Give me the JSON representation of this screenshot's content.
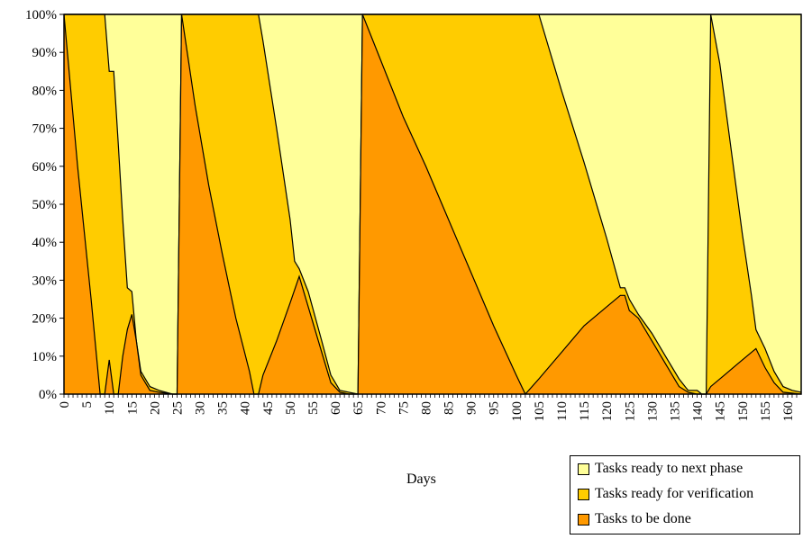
{
  "chart_data": {
    "type": "area",
    "stacked": "percent",
    "xlabel": "Days",
    "ylabel": "",
    "title": "",
    "xlim": [
      0,
      163
    ],
    "ylim": [
      0,
      100
    ],
    "y_ticks": [
      "0%",
      "10%",
      "20%",
      "30%",
      "40%",
      "50%",
      "60%",
      "70%",
      "80%",
      "90%",
      "100%"
    ],
    "x_ticks": [
      0,
      5,
      10,
      15,
      20,
      25,
      30,
      35,
      40,
      45,
      50,
      55,
      60,
      65,
      70,
      75,
      80,
      85,
      90,
      95,
      100,
      105,
      110,
      115,
      120,
      125,
      130,
      135,
      140,
      145,
      150,
      155,
      160
    ],
    "x_ticks_extra": [
      1,
      2,
      3,
      4,
      6,
      7,
      8,
      9,
      11,
      12,
      13,
      14,
      16,
      17,
      18,
      19,
      21,
      22,
      23,
      24,
      26,
      27,
      28,
      29,
      31,
      32,
      33,
      34,
      36,
      37,
      38,
      39,
      41,
      42,
      43,
      44,
      46,
      47,
      48,
      49,
      51,
      52,
      53,
      54,
      56,
      57,
      58,
      59,
      61,
      62,
      63,
      64,
      66,
      67,
      68,
      69,
      71,
      72,
      73,
      74,
      76,
      77,
      78,
      79,
      81,
      82,
      83,
      84,
      86,
      87,
      88,
      89,
      91,
      92,
      93,
      94,
      96,
      97,
      98,
      99,
      101,
      102,
      103,
      104,
      106,
      107,
      108,
      109,
      111,
      112,
      113,
      114,
      116,
      117,
      118,
      119,
      121,
      122,
      123,
      124,
      126,
      127,
      128,
      129,
      131,
      132,
      133,
      134,
      136,
      137,
      138,
      139,
      141,
      142,
      143,
      144,
      146,
      147,
      148,
      149,
      151,
      152,
      153,
      154,
      156,
      157,
      158,
      159,
      161,
      162
    ],
    "grid": false,
    "legend_position": "bottom-right",
    "series": [
      {
        "name": "Tasks to be done",
        "color": "#ff9900",
        "points": [
          [
            0,
            100
          ],
          [
            3,
            60
          ],
          [
            6,
            25
          ],
          [
            8,
            0
          ],
          [
            9,
            0
          ],
          [
            10,
            9
          ],
          [
            11,
            0
          ],
          [
            12,
            0
          ],
          [
            13,
            10
          ],
          [
            14,
            17
          ],
          [
            15,
            21
          ],
          [
            16,
            14
          ],
          [
            17,
            5
          ],
          [
            19,
            1
          ],
          [
            21,
            0.5
          ],
          [
            24,
            0
          ],
          [
            25,
            0
          ],
          [
            26,
            100
          ],
          [
            29,
            76
          ],
          [
            32,
            55
          ],
          [
            35,
            37
          ],
          [
            38,
            20
          ],
          [
            41,
            6
          ],
          [
            42,
            0
          ],
          [
            43,
            0
          ],
          [
            44,
            5
          ],
          [
            47,
            14
          ],
          [
            50,
            24
          ],
          [
            52,
            31
          ],
          [
            54,
            23
          ],
          [
            57,
            11
          ],
          [
            59,
            3
          ],
          [
            61,
            0.5
          ],
          [
            63,
            0
          ],
          [
            65,
            0
          ],
          [
            66,
            100
          ],
          [
            70,
            88
          ],
          [
            75,
            73
          ],
          [
            80,
            60
          ],
          [
            85,
            46
          ],
          [
            90,
            32
          ],
          [
            95,
            18
          ],
          [
            100,
            5
          ],
          [
            102,
            0
          ],
          [
            105,
            4
          ],
          [
            110,
            11
          ],
          [
            115,
            18
          ],
          [
            120,
            23
          ],
          [
            123,
            26
          ],
          [
            124,
            26
          ],
          [
            125,
            22
          ],
          [
            127,
            20
          ],
          [
            130,
            14
          ],
          [
            133,
            8
          ],
          [
            136,
            2
          ],
          [
            138,
            0.5
          ],
          [
            140,
            0
          ],
          [
            141,
            0
          ],
          [
            142,
            0
          ],
          [
            143,
            2
          ],
          [
            146,
            5
          ],
          [
            149,
            8
          ],
          [
            152,
            11
          ],
          [
            153,
            12
          ],
          [
            155,
            7
          ],
          [
            157,
            3
          ],
          [
            159,
            0.5
          ],
          [
            163,
            0
          ]
        ]
      },
      {
        "name": "Tasks ready for verification",
        "color": "#ffcc00",
        "points": [
          [
            0,
            100
          ],
          [
            9,
            100
          ],
          [
            10,
            85
          ],
          [
            11,
            85
          ],
          [
            12,
            66
          ],
          [
            13,
            46
          ],
          [
            14,
            28
          ],
          [
            15,
            27
          ],
          [
            16,
            14
          ],
          [
            17,
            6
          ],
          [
            19,
            2
          ],
          [
            21,
            1
          ],
          [
            24,
            0
          ],
          [
            25,
            0
          ],
          [
            26,
            100
          ],
          [
            43,
            100
          ],
          [
            44,
            93
          ],
          [
            47,
            70
          ],
          [
            50,
            46
          ],
          [
            51,
            35
          ],
          [
            52,
            33
          ],
          [
            54,
            27
          ],
          [
            57,
            14
          ],
          [
            59,
            5
          ],
          [
            61,
            1
          ],
          [
            63,
            0.5
          ],
          [
            65,
            0
          ],
          [
            66,
            100
          ],
          [
            105,
            100
          ],
          [
            110,
            80
          ],
          [
            115,
            61
          ],
          [
            120,
            41
          ],
          [
            123,
            28
          ],
          [
            124,
            28
          ],
          [
            125,
            25
          ],
          [
            127,
            21
          ],
          [
            130,
            16
          ],
          [
            133,
            10
          ],
          [
            136,
            4
          ],
          [
            138,
            1
          ],
          [
            140,
            1
          ],
          [
            141,
            0
          ],
          [
            142,
            0
          ],
          [
            143,
            100
          ],
          [
            145,
            87
          ],
          [
            147,
            69
          ],
          [
            150,
            42
          ],
          [
            152,
            26
          ],
          [
            153,
            17
          ],
          [
            155,
            12
          ],
          [
            157,
            6
          ],
          [
            159,
            2
          ],
          [
            161,
            1
          ],
          [
            163,
            0.5
          ]
        ]
      },
      {
        "name": "Tasks ready to next phase",
        "color": "#ffff99",
        "points": [
          [
            0,
            100
          ],
          [
            163,
            100
          ]
        ]
      }
    ]
  },
  "legend": {
    "items": [
      {
        "label": "Tasks ready to next phase",
        "color": "#ffff99"
      },
      {
        "label": "Tasks ready for verification",
        "color": "#ffcc00"
      },
      {
        "label": "Tasks to be done",
        "color": "#ff9900"
      }
    ]
  }
}
